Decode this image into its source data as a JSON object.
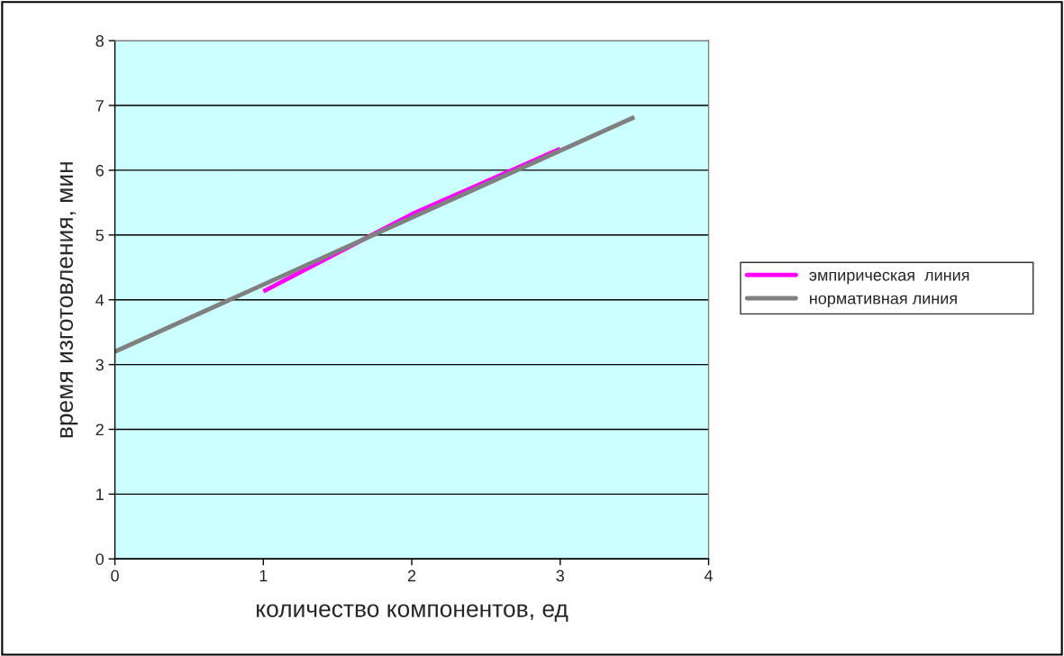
{
  "chart_data": {
    "type": "line",
    "xlabel": "количество компонентов, ед",
    "ylabel": "время изготовления, мин",
    "series": [
      {
        "name": "эмпирическая  линия",
        "color": "#ff00ff",
        "x": [
          1,
          2,
          3
        ],
        "values": [
          4.13,
          5.32,
          6.33
        ]
      },
      {
        "name": "нормативная линия",
        "color": "#808080",
        "x": [
          0,
          3.5
        ],
        "values": [
          3.2,
          6.82
        ]
      }
    ],
    "xlim": [
      0,
      4
    ],
    "xticks": [
      0,
      1,
      2,
      3,
      4
    ],
    "ylim": [
      0,
      8
    ],
    "yticks": [
      0,
      1,
      2,
      3,
      4,
      5,
      6,
      7,
      8
    ],
    "grid": "y",
    "legend": "right",
    "marker": "none",
    "line_style": "solid"
  }
}
